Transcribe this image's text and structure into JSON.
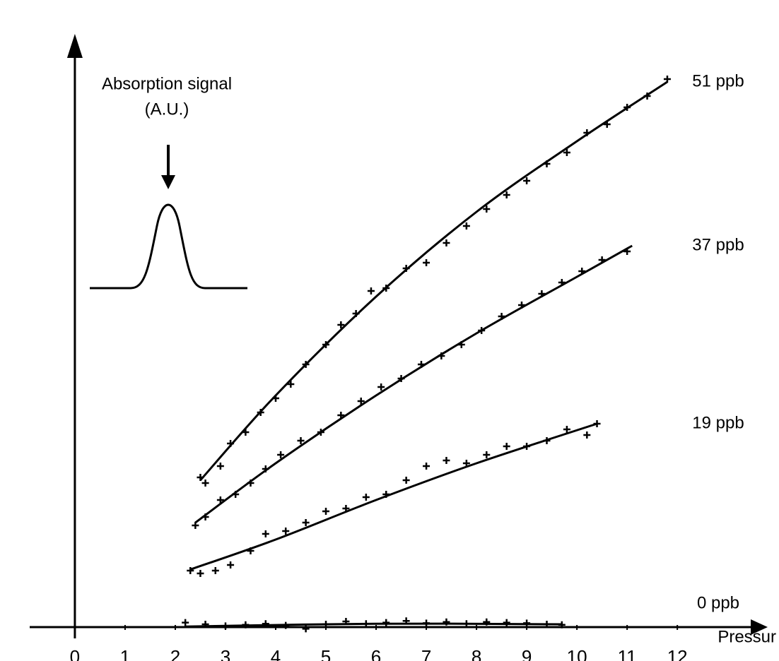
{
  "chart_data": {
    "type": "scatter",
    "ylabel": [
      "Absorption signal",
      "(A.U.)"
    ],
    "xlabel": "Pressur",
    "xlim": [
      -0.9,
      13.8
    ],
    "ylim": [
      -2,
      105
    ],
    "xticks": [
      0,
      1,
      2,
      3,
      4,
      5,
      6,
      7,
      8,
      9,
      10,
      11,
      12
    ],
    "color": "#000000",
    "series": [
      {
        "name": "51 ppb",
        "x": [
          2.5,
          2.6,
          2.9,
          3.1,
          3.4,
          3.7,
          4.0,
          4.3,
          4.6,
          5.0,
          5.3,
          5.6,
          5.9,
          6.2,
          6.6,
          7.0,
          7.4,
          7.8,
          8.2,
          8.6,
          9.0,
          9.4,
          9.8,
          10.2,
          10.6,
          11.0,
          11.4,
          11.8
        ],
        "values": [
          26.5,
          25.5,
          28.5,
          32.5,
          34.5,
          38,
          40.5,
          43,
          46.5,
          50,
          53.5,
          55.5,
          59.5,
          60,
          63.5,
          64.5,
          68,
          71,
          74,
          76.5,
          79,
          82,
          84,
          87.5,
          89,
          92,
          94,
          97
        ],
        "fit_x": [
          2.5,
          4,
          6,
          8,
          10,
          11.8
        ],
        "fit_values": [
          26,
          41,
          58.5,
          73.5,
          86,
          96.5
        ]
      },
      {
        "name": "37 ppb",
        "x": [
          2.4,
          2.6,
          2.9,
          3.2,
          3.5,
          3.8,
          4.1,
          4.5,
          4.9,
          5.3,
          5.7,
          6.1,
          6.5,
          6.9,
          7.3,
          7.7,
          8.1,
          8.5,
          8.9,
          9.3,
          9.7,
          10.1,
          10.5,
          11.0
        ],
        "values": [
          18,
          19.5,
          22.5,
          23.5,
          25.5,
          28,
          30.5,
          33,
          34.5,
          37.5,
          40,
          42.5,
          44,
          46.5,
          48,
          50,
          52.5,
          55,
          57,
          59,
          61,
          63,
          65,
          66.5
        ],
        "fit_x": [
          2.4,
          4,
          6,
          8,
          10,
          11.1
        ],
        "fit_values": [
          18.5,
          29,
          41,
          52,
          62,
          67.5
        ]
      },
      {
        "name": "19 ppb",
        "x": [
          2.3,
          2.5,
          2.8,
          3.1,
          3.5,
          3.8,
          4.2,
          4.6,
          5.0,
          5.4,
          5.8,
          6.2,
          6.6,
          7.0,
          7.4,
          7.8,
          8.2,
          8.6,
          9.0,
          9.4,
          9.8,
          10.2,
          10.4
        ],
        "values": [
          10,
          9.5,
          10,
          11,
          13.5,
          16.5,
          17,
          18.5,
          20.5,
          21,
          23,
          23.5,
          26,
          28.5,
          29.5,
          29,
          30.5,
          32,
          32,
          33,
          35,
          34,
          36
        ],
        "fit_x": [
          2.3,
          4,
          6,
          8,
          10.4
        ],
        "fit_values": [
          10.2,
          15.5,
          22.5,
          29,
          36
        ]
      },
      {
        "name": "0 ppb",
        "x": [
          2.2,
          2.6,
          3.0,
          3.4,
          3.8,
          4.2,
          4.6,
          5.0,
          5.4,
          5.8,
          6.2,
          6.6,
          7.0,
          7.4,
          7.8,
          8.2,
          8.6,
          9.0,
          9.4,
          9.7
        ],
        "values": [
          0.8,
          0.5,
          0.2,
          0.4,
          0.6,
          0.3,
          -0.3,
          0.5,
          1,
          0.6,
          0.8,
          1.1,
          0.7,
          0.9,
          0.6,
          0.9,
          0.8,
          0.7,
          0.5,
          0.4
        ],
        "fit_x": [
          2.2,
          6,
          9.7
        ],
        "fit_values": [
          0.1,
          0.6,
          0.5
        ]
      }
    ]
  }
}
